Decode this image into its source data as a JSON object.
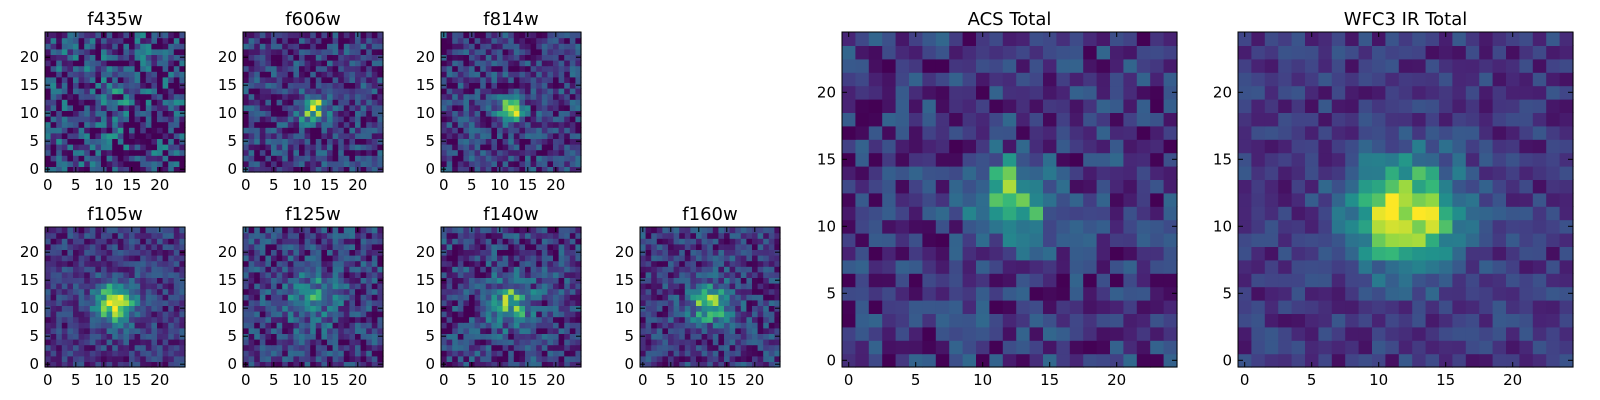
{
  "chart_data": [
    {
      "type": "heatmap",
      "title": "f435w",
      "grid": [
        25,
        25
      ],
      "xlim": [
        0,
        25
      ],
      "ylim": [
        0,
        25
      ],
      "xticks": [
        0,
        5,
        10,
        15,
        20
      ],
      "yticks": [
        0,
        5,
        10,
        15,
        20
      ],
      "source_center": [
        12,
        11
      ],
      "source_sigma": 3.0,
      "peak_amplitude": 0.15,
      "noise_level": 0.85,
      "colormap": "viridis"
    },
    {
      "type": "heatmap",
      "title": "f606w",
      "grid": [
        25,
        25
      ],
      "xlim": [
        0,
        25
      ],
      "ylim": [
        0,
        25
      ],
      "xticks": [
        0,
        5,
        10,
        15,
        20
      ],
      "yticks": [
        0,
        5,
        10,
        15,
        20
      ],
      "source_center": [
        12,
        11
      ],
      "source_sigma": 1.8,
      "peak_amplitude": 0.7,
      "noise_level": 0.55,
      "colormap": "viridis"
    },
    {
      "type": "heatmap",
      "title": "f814w",
      "grid": [
        25,
        25
      ],
      "xlim": [
        0,
        25
      ],
      "ylim": [
        0,
        25
      ],
      "xticks": [
        0,
        5,
        10,
        15,
        20
      ],
      "yticks": [
        0,
        5,
        10,
        15,
        20
      ],
      "source_center": [
        12,
        11
      ],
      "source_sigma": 1.6,
      "peak_amplitude": 0.75,
      "noise_level": 0.55,
      "colormap": "viridis"
    },
    {
      "type": "heatmap",
      "title": "f105w",
      "grid": [
        25,
        25
      ],
      "xlim": [
        0,
        25
      ],
      "ylim": [
        0,
        25
      ],
      "xticks": [
        0,
        5,
        10,
        15,
        20
      ],
      "yticks": [
        0,
        5,
        10,
        15,
        20
      ],
      "source_center": [
        12,
        11
      ],
      "source_sigma": 2.6,
      "peak_amplitude": 0.8,
      "noise_level": 0.4,
      "colormap": "viridis"
    },
    {
      "type": "heatmap",
      "title": "f125w",
      "grid": [
        25,
        25
      ],
      "xlim": [
        0,
        25
      ],
      "ylim": [
        0,
        25
      ],
      "xticks": [
        0,
        5,
        10,
        15,
        20
      ],
      "yticks": [
        0,
        5,
        10,
        15,
        20
      ],
      "source_center": [
        12,
        12
      ],
      "source_sigma": 3.5,
      "peak_amplitude": 0.35,
      "noise_level": 0.55,
      "colormap": "viridis"
    },
    {
      "type": "heatmap",
      "title": "f140w",
      "grid": [
        25,
        25
      ],
      "xlim": [
        0,
        25
      ],
      "ylim": [
        0,
        25
      ],
      "xticks": [
        0,
        5,
        10,
        15,
        20
      ],
      "yticks": [
        0,
        5,
        10,
        15,
        20
      ],
      "source_center": [
        12,
        11
      ],
      "source_sigma": 2.8,
      "peak_amplitude": 0.55,
      "noise_level": 0.55,
      "colormap": "viridis"
    },
    {
      "type": "heatmap",
      "title": "f160w",
      "grid": [
        25,
        25
      ],
      "xlim": [
        0,
        25
      ],
      "ylim": [
        0,
        25
      ],
      "xticks": [
        0,
        5,
        10,
        15,
        20
      ],
      "yticks": [
        0,
        5,
        10,
        15,
        20
      ],
      "source_center": [
        12,
        11
      ],
      "source_sigma": 2.6,
      "peak_amplitude": 0.6,
      "noise_level": 0.5,
      "colormap": "viridis"
    },
    {
      "type": "heatmap",
      "title": "ACS Total",
      "grid": [
        25,
        25
      ],
      "xlim": [
        0,
        25
      ],
      "ylim": [
        0,
        25
      ],
      "xticks": [
        0,
        5,
        10,
        15,
        20
      ],
      "yticks": [
        0,
        5,
        10,
        15,
        20
      ],
      "source_center": [
        12,
        12
      ],
      "source_sigma": 2.0,
      "peak_amplitude": 0.7,
      "noise_level": 0.45,
      "colormap": "viridis"
    },
    {
      "type": "heatmap",
      "title": "WFC3 IR Total",
      "grid": [
        25,
        25
      ],
      "xlim": [
        0,
        25
      ],
      "ylim": [
        0,
        25
      ],
      "xticks": [
        0,
        5,
        10,
        15,
        20
      ],
      "yticks": [
        0,
        5,
        10,
        15,
        20
      ],
      "source_center": [
        12,
        11
      ],
      "source_sigma": 3.0,
      "peak_amplitude": 0.8,
      "noise_level": 0.3,
      "colormap": "viridis"
    }
  ]
}
